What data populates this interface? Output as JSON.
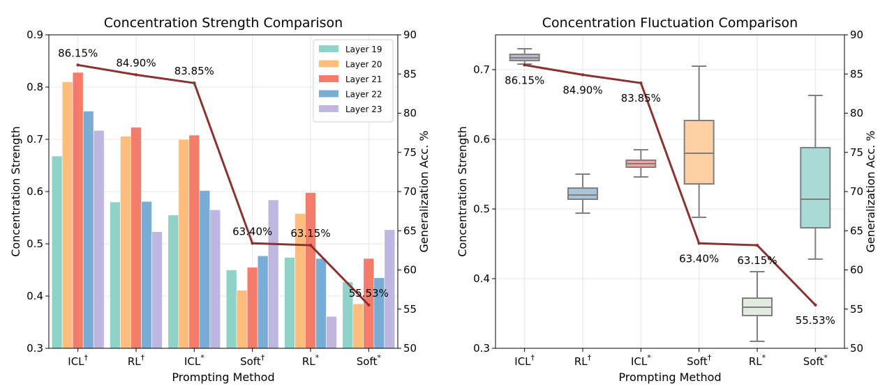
{
  "chart_data": [
    {
      "type": "bar",
      "title": "Concentration Strength Comparison",
      "xlabel": "Prompting Method",
      "ylabel": "Concentration Strength",
      "y2label": "Generalization Acc. %",
      "categories": [
        "ICL†",
        "RL†",
        "ICL*",
        "Soft†",
        "RL*",
        "Soft*"
      ],
      "ylim": [
        0.3,
        0.9
      ],
      "yticks": [
        "0.3",
        "0.4",
        "0.5",
        "0.6",
        "0.7",
        "0.8",
        "0.9"
      ],
      "y2lim": [
        50,
        90
      ],
      "y2ticks": [
        "50",
        "55",
        "60",
        "65",
        "70",
        "75",
        "80",
        "85",
        "90"
      ],
      "grid": true,
      "legend": "top-right",
      "series": [
        {
          "name": "Layer 19",
          "color": "#8fd3c8",
          "values": [
            0.668,
            0.58,
            0.555,
            0.45,
            0.474,
            0.427
          ]
        },
        {
          "name": "Layer 20",
          "color": "#ffbd7d",
          "values": [
            0.81,
            0.706,
            0.7,
            0.411,
            0.558,
            0.385
          ]
        },
        {
          "name": "Layer 21",
          "color": "#f47c6a",
          "values": [
            0.828,
            0.723,
            0.708,
            0.455,
            0.598,
            0.472
          ]
        },
        {
          "name": "Layer 22",
          "color": "#7aadd6",
          "values": [
            0.754,
            0.581,
            0.602,
            0.477,
            0.472,
            0.435
          ]
        },
        {
          "name": "Layer 23",
          "color": "#bfb7e0",
          "values": [
            0.717,
            0.523,
            0.565,
            0.584,
            0.361,
            0.527
          ]
        }
      ],
      "line": {
        "color": "#8b3130",
        "values": [
          86.15,
          84.9,
          83.85,
          63.4,
          63.15,
          55.53
        ],
        "labels": [
          "86.15%",
          "84.90%",
          "83.85%",
          "63.40%",
          "63.15%",
          "55.53%"
        ]
      }
    },
    {
      "type": "box",
      "title": "Concentration Fluctuation Comparison",
      "xlabel": "Prompting Method",
      "ylabel": "Concentration Strength",
      "y2label": "Generalization Acc. %",
      "categories": [
        "ICL†",
        "RL†",
        "ICL*",
        "Soft†",
        "RL*",
        "Soft*"
      ],
      "ylim": [
        0.3,
        0.75
      ],
      "yticks": [
        "0.3",
        "0.4",
        "0.5",
        "0.6",
        "0.7"
      ],
      "y2lim": [
        50,
        90
      ],
      "y2ticks": [
        "50",
        "55",
        "60",
        "65",
        "70",
        "75",
        "80",
        "85",
        "90"
      ],
      "grid": true,
      "boxes": [
        {
          "min": 0.708,
          "q1": 0.713,
          "median": 0.717,
          "q3": 0.722,
          "max": 0.73,
          "color": "#b9b9c8"
        },
        {
          "min": 0.494,
          "q1": 0.514,
          "median": 0.52,
          "q3": 0.53,
          "max": 0.55,
          "color": "#a9c3d9"
        },
        {
          "min": 0.546,
          "q1": 0.56,
          "median": 0.565,
          "q3": 0.57,
          "max": 0.585,
          "color": "#f3a6a0"
        },
        {
          "min": 0.488,
          "q1": 0.536,
          "median": 0.58,
          "q3": 0.627,
          "max": 0.705,
          "color": "#ffd0a3"
        },
        {
          "min": 0.31,
          "q1": 0.347,
          "median": 0.359,
          "q3": 0.372,
          "max": 0.41,
          "color": "#e2ebdf"
        },
        {
          "min": 0.428,
          "q1": 0.473,
          "median": 0.514,
          "q3": 0.588,
          "max": 0.663,
          "color": "#a9dcd7"
        }
      ],
      "line": {
        "color": "#8b3130",
        "values": [
          86.15,
          84.9,
          83.85,
          63.4,
          63.15,
          55.53
        ],
        "labels": [
          "86.15%",
          "84.90%",
          "83.85%",
          "63.40%",
          "63.15%",
          "55.53%"
        ]
      }
    }
  ]
}
